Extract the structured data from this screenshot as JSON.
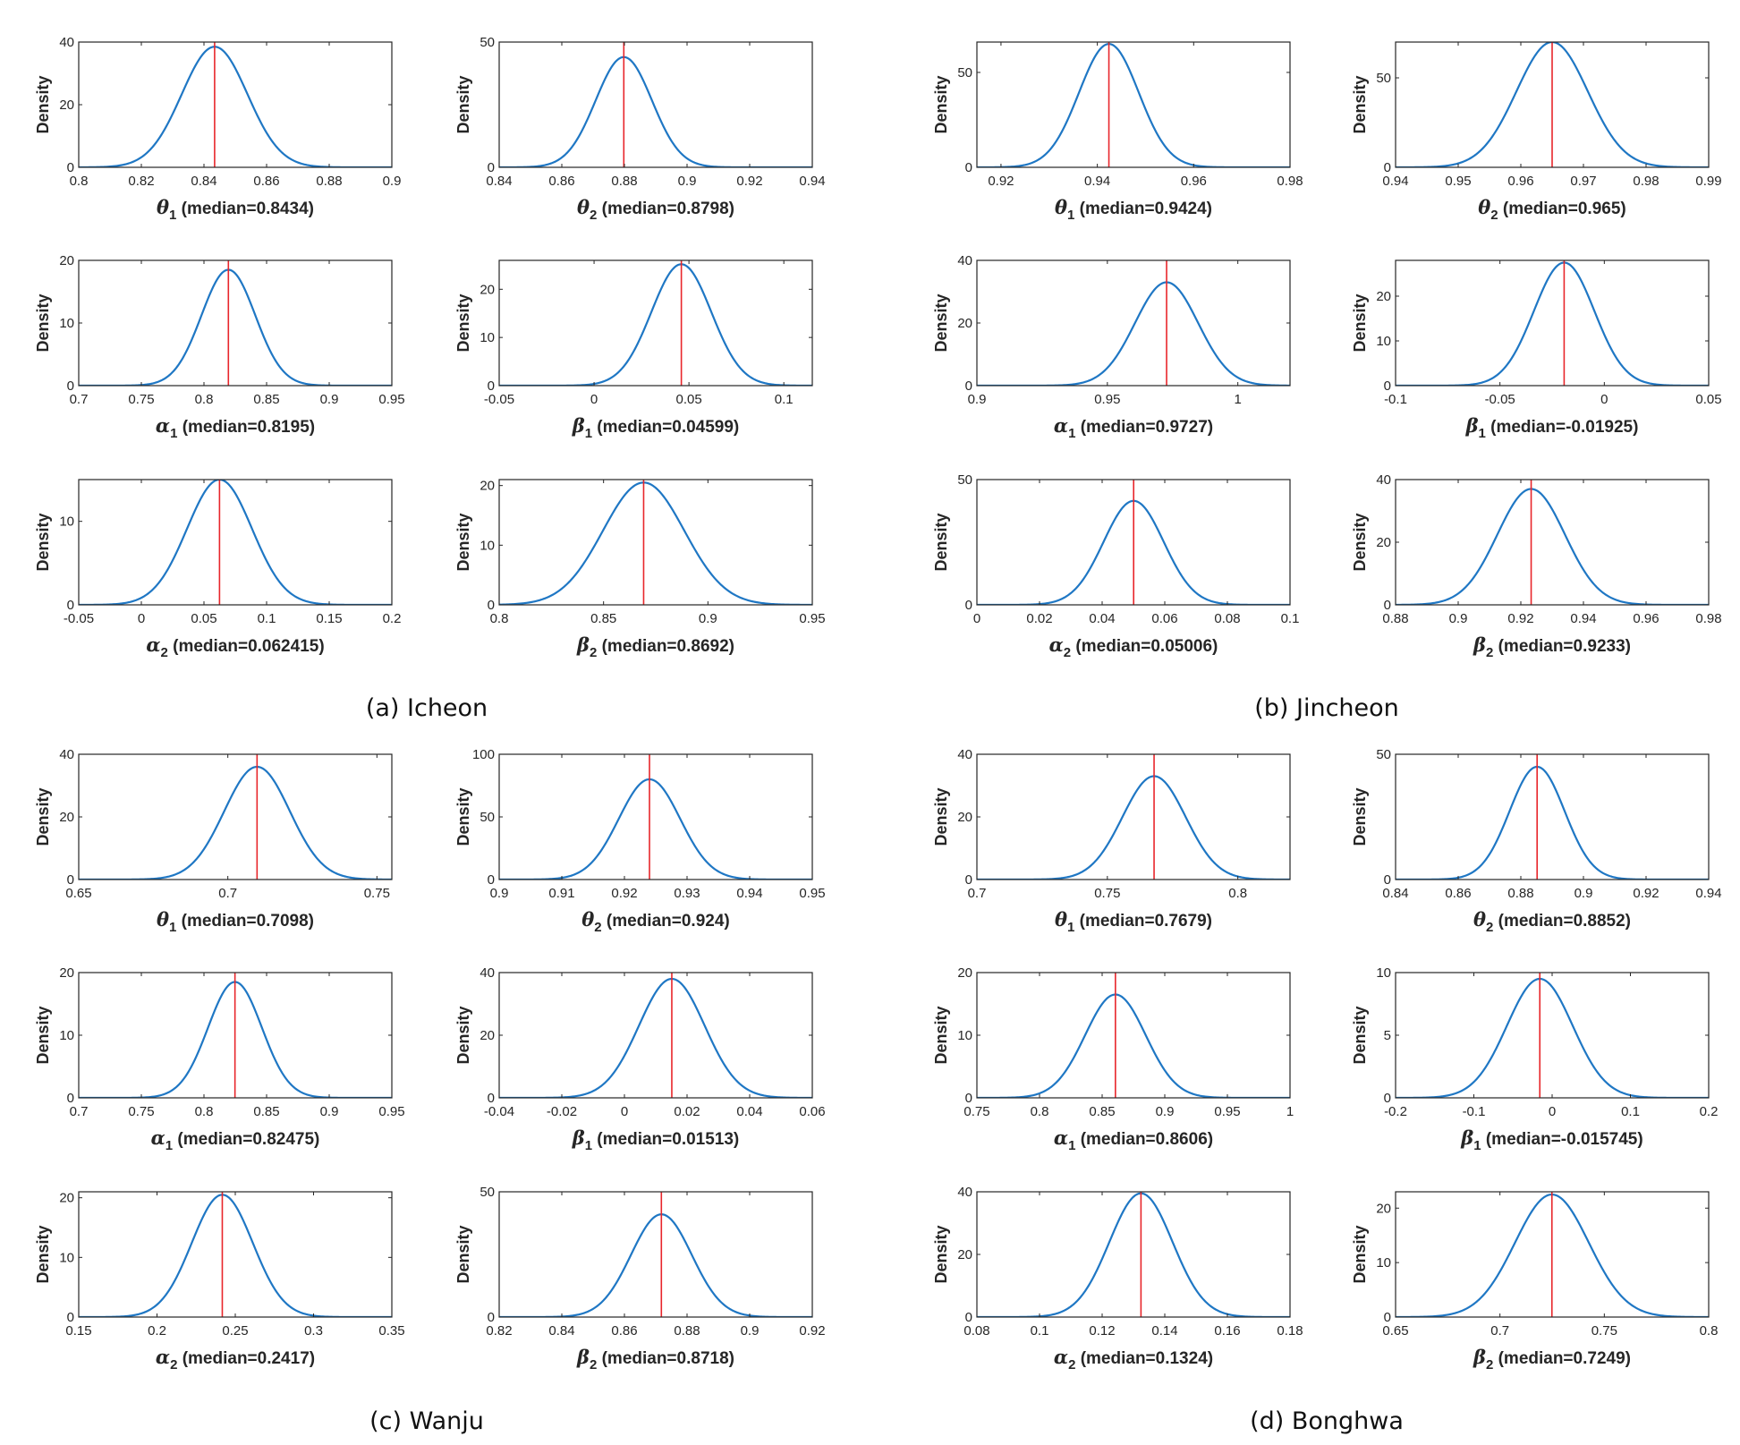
{
  "chart_data": [
    {
      "panel": "a",
      "type": "line",
      "ylabel": "Density",
      "symbol": "θ",
      "sub": "1",
      "label": " (median=0.8434)",
      "median": 0.8434,
      "xlim": [
        0.8,
        0.9
      ],
      "xticks": [
        "0.8",
        "0.82",
        "0.84",
        "0.86",
        "0.88",
        "0.9"
      ],
      "ylim": [
        0,
        40
      ],
      "yticks": [
        "0",
        "20",
        "40"
      ],
      "peak": 38.5,
      "sd": 0.0105
    },
    {
      "panel": "a",
      "type": "line",
      "ylabel": "Density",
      "symbol": "θ",
      "sub": "2",
      "label": " (median=0.8798)",
      "median": 0.8798,
      "xlim": [
        0.84,
        0.94
      ],
      "xticks": [
        "0.84",
        "0.86",
        "0.88",
        "0.9",
        "0.92",
        "0.94"
      ],
      "ylim": [
        0,
        50
      ],
      "yticks": [
        "0",
        "50"
      ],
      "peak": 44,
      "sd": 0.009
    },
    {
      "panel": "a",
      "type": "line",
      "ylabel": "Density",
      "symbol": "α",
      "sub": "1",
      "label": " (median=0.8195)",
      "median": 0.8195,
      "xlim": [
        0.7,
        0.95
      ],
      "xticks": [
        "0.7",
        "0.75",
        "0.8",
        "0.85",
        "0.9",
        "0.95"
      ],
      "ylim": [
        0,
        20
      ],
      "yticks": [
        "0",
        "10",
        "20"
      ],
      "peak": 18.5,
      "sd": 0.0215
    },
    {
      "panel": "a",
      "type": "line",
      "ylabel": "Density",
      "symbol": "β",
      "sub": "1",
      "label": " (median=0.04599)",
      "median": 0.04599,
      "xlim": [
        -0.05,
        0.115
      ],
      "xticks": [
        "-0.05",
        "0",
        "0.05",
        "0.1"
      ],
      "xtickvals": [
        -0.05,
        0,
        0.05,
        0.1
      ],
      "ylim": [
        0,
        26
      ],
      "yticks": [
        "0",
        "10",
        "20"
      ],
      "ytickvals": [
        0,
        10,
        20
      ],
      "peak": 25.2,
      "sd": 0.0158
    },
    {
      "panel": "a",
      "type": "line",
      "ylabel": "Density",
      "symbol": "α",
      "sub": "2",
      "label": " (median=0.062415)",
      "median": 0.062415,
      "xlim": [
        -0.05,
        0.2
      ],
      "xticks": [
        "-0.05",
        "0",
        "0.05",
        "0.1",
        "0.15",
        "0.2"
      ],
      "ylim": [
        0,
        15
      ],
      "yticks": [
        "0",
        "10"
      ],
      "ytickvals": [
        0,
        10
      ],
      "peak": 15,
      "sd": 0.026
    },
    {
      "panel": "a",
      "type": "line",
      "ylabel": "Density",
      "symbol": "β",
      "sub": "2",
      "label": " (median=0.8692)",
      "median": 0.8692,
      "xlim": [
        0.8,
        0.95
      ],
      "xticks": [
        "0.8",
        "0.85",
        "0.9",
        "0.95"
      ],
      "ylim": [
        0,
        21
      ],
      "yticks": [
        "0",
        "10",
        "20"
      ],
      "ytickvals": [
        0,
        10,
        20
      ],
      "peak": 20.5,
      "sd": 0.0195
    },
    {
      "panel": "b",
      "type": "line",
      "ylabel": "Density",
      "symbol": "θ",
      "sub": "1",
      "label": " (median=0.9424)",
      "median": 0.9424,
      "xlim": [
        0.915,
        0.98
      ],
      "xticks": [
        "0.92",
        "0.94",
        "0.96",
        "0.98"
      ],
      "xtickvals": [
        0.92,
        0.94,
        0.96,
        0.98
      ],
      "ylim": [
        0,
        66
      ],
      "yticks": [
        "0",
        "50"
      ],
      "ytickvals": [
        0,
        50
      ],
      "peak": 65,
      "sd": 0.0062
    },
    {
      "panel": "b",
      "type": "line",
      "ylabel": "Density",
      "symbol": "θ",
      "sub": "2",
      "label": " (median=0.965)",
      "median": 0.965,
      "xlim": [
        0.94,
        0.99
      ],
      "xticks": [
        "0.94",
        "0.95",
        "0.96",
        "0.97",
        "0.98",
        "0.99"
      ],
      "ylim": [
        0,
        70
      ],
      "yticks": [
        "0",
        "50"
      ],
      "ytickvals": [
        0,
        50
      ],
      "peak": 70,
      "sd": 0.0057
    },
    {
      "panel": "b",
      "type": "line",
      "ylabel": "Density",
      "symbol": "α",
      "sub": "1",
      "label": " (median=0.9727)",
      "median": 0.9727,
      "xlim": [
        0.9,
        1.02
      ],
      "xticks": [
        "0.9",
        "0.95",
        "1"
      ],
      "xtickvals": [
        0.9,
        0.95,
        1
      ],
      "ylim": [
        0,
        40
      ],
      "yticks": [
        "0",
        "20",
        "40"
      ],
      "peak": 33,
      "sd": 0.0121
    },
    {
      "panel": "b",
      "type": "line",
      "ylabel": "Density",
      "symbol": "β",
      "sub": "1",
      "label": " (median=-0.01925)",
      "median": -0.01925,
      "xlim": [
        -0.1,
        0.05
      ],
      "xticks": [
        "-0.1",
        "-0.05",
        "0",
        "0.05"
      ],
      "ylim": [
        0,
        28
      ],
      "yticks": [
        "0",
        "10",
        "20"
      ],
      "ytickvals": [
        0,
        10,
        20
      ],
      "peak": 27.5,
      "sd": 0.0145
    },
    {
      "panel": "b",
      "type": "line",
      "ylabel": "Density",
      "symbol": "α",
      "sub": "2",
      "label": " (median=0.05006)",
      "median": 0.05006,
      "xlim": [
        0,
        0.1
      ],
      "xticks": [
        "0",
        "0.02",
        "0.04",
        "0.06",
        "0.08",
        "0.1"
      ],
      "ylim": [
        0,
        50
      ],
      "yticks": [
        "0",
        "50"
      ],
      "peak": 41.5,
      "sd": 0.0096
    },
    {
      "panel": "b",
      "type": "line",
      "ylabel": "Density",
      "symbol": "β",
      "sub": "2",
      "label": " (median=0.9233)",
      "median": 0.9233,
      "xlim": [
        0.88,
        0.98
      ],
      "xticks": [
        "0.88",
        "0.9",
        "0.92",
        "0.94",
        "0.96",
        "0.98"
      ],
      "ylim": [
        0,
        40
      ],
      "yticks": [
        "0",
        "20",
        "40"
      ],
      "peak": 37,
      "sd": 0.0108
    },
    {
      "panel": "c",
      "type": "line",
      "ylabel": "Density",
      "symbol": "θ",
      "sub": "1",
      "label": " (median=0.7098)",
      "median": 0.7098,
      "xlim": [
        0.65,
        0.755
      ],
      "xticks": [
        "0.65",
        "0.7",
        "0.75"
      ],
      "xtickvals": [
        0.65,
        0.7,
        0.75
      ],
      "ylim": [
        0,
        40
      ],
      "yticks": [
        "0",
        "20",
        "40"
      ],
      "peak": 36,
      "sd": 0.011
    },
    {
      "panel": "c",
      "type": "line",
      "ylabel": "Density",
      "symbol": "θ",
      "sub": "2",
      "label": " (median=0.924)",
      "median": 0.924,
      "xlim": [
        0.9,
        0.95
      ],
      "xticks": [
        "0.9",
        "0.91",
        "0.92",
        "0.93",
        "0.94",
        "0.95"
      ],
      "ylim": [
        0,
        100
      ],
      "yticks": [
        "0",
        "50",
        "100"
      ],
      "peak": 80,
      "sd": 0.0049
    },
    {
      "panel": "c",
      "type": "line",
      "ylabel": "Density",
      "symbol": "α",
      "sub": "1",
      "label": " (median=0.82475)",
      "median": 0.82475,
      "xlim": [
        0.7,
        0.95
      ],
      "xticks": [
        "0.7",
        "0.75",
        "0.8",
        "0.85",
        "0.9",
        "0.95"
      ],
      "ylim": [
        0,
        20
      ],
      "yticks": [
        "0",
        "10",
        "20"
      ],
      "peak": 18.5,
      "sd": 0.0215
    },
    {
      "panel": "c",
      "type": "line",
      "ylabel": "Density",
      "symbol": "β",
      "sub": "1",
      "label": " (median=0.01513)",
      "median": 0.01513,
      "xlim": [
        -0.04,
        0.06
      ],
      "xticks": [
        "-0.04",
        "-0.02",
        "0",
        "0.02",
        "0.04",
        "0.06"
      ],
      "ylim": [
        0,
        40
      ],
      "yticks": [
        "0",
        "20",
        "40"
      ],
      "peak": 38,
      "sd": 0.0105
    },
    {
      "panel": "c",
      "type": "line",
      "ylabel": "Density",
      "symbol": "α",
      "sub": "2",
      "label": " (median=0.2417)",
      "median": 0.2417,
      "xlim": [
        0.15,
        0.35
      ],
      "xticks": [
        "0.15",
        "0.2",
        "0.25",
        "0.3",
        "0.35"
      ],
      "ylim": [
        0,
        21
      ],
      "yticks": [
        "0",
        "10",
        "20"
      ],
      "ytickvals": [
        0,
        10,
        20
      ],
      "peak": 20.5,
      "sd": 0.0195
    },
    {
      "panel": "c",
      "type": "line",
      "ylabel": "Density",
      "symbol": "β",
      "sub": "2",
      "label": " (median=0.8718)",
      "median": 0.8718,
      "xlim": [
        0.82,
        0.92
      ],
      "xticks": [
        "0.82",
        "0.84",
        "0.86",
        "0.88",
        "0.9",
        "0.92"
      ],
      "ylim": [
        0,
        50
      ],
      "yticks": [
        "0",
        "50"
      ],
      "peak": 41,
      "sd": 0.0097
    },
    {
      "panel": "d",
      "type": "line",
      "ylabel": "Density",
      "symbol": "θ",
      "sub": "1",
      "label": " (median=0.7679)",
      "median": 0.7679,
      "xlim": [
        0.7,
        0.82
      ],
      "xticks": [
        "0.7",
        "0.75",
        "0.8"
      ],
      "xtickvals": [
        0.7,
        0.75,
        0.8
      ],
      "ylim": [
        0,
        40
      ],
      "yticks": [
        "0",
        "20",
        "40"
      ],
      "peak": 33,
      "sd": 0.0121
    },
    {
      "panel": "d",
      "type": "line",
      "ylabel": "Density",
      "symbol": "θ",
      "sub": "2",
      "label": " (median=0.8852)",
      "median": 0.8852,
      "xlim": [
        0.84,
        0.94
      ],
      "xticks": [
        "0.84",
        "0.86",
        "0.88",
        "0.9",
        "0.92",
        "0.94"
      ],
      "ylim": [
        0,
        50
      ],
      "yticks": [
        "0",
        "50"
      ],
      "peak": 45,
      "sd": 0.0088
    },
    {
      "panel": "d",
      "type": "line",
      "ylabel": "Density",
      "symbol": "α",
      "sub": "1",
      "label": " (median=0.8606)",
      "median": 0.8606,
      "xlim": [
        0.75,
        1
      ],
      "xticks": [
        "0.75",
        "0.8",
        "0.85",
        "0.9",
        "0.95",
        "1"
      ],
      "ylim": [
        0,
        20
      ],
      "yticks": [
        "0",
        "10",
        "20"
      ],
      "peak": 16.5,
      "sd": 0.0242
    },
    {
      "panel": "d",
      "type": "line",
      "ylabel": "Density",
      "symbol": "β",
      "sub": "1",
      "label": " (median=-0.015745)",
      "median": -0.015745,
      "xlim": [
        -0.2,
        0.2
      ],
      "xticks": [
        "-0.2",
        "-0.1",
        "0",
        "0.1",
        "0.2"
      ],
      "ylim": [
        0,
        10
      ],
      "yticks": [
        "0",
        "5",
        "10"
      ],
      "peak": 9.5,
      "sd": 0.042
    },
    {
      "panel": "d",
      "type": "line",
      "ylabel": "Density",
      "symbol": "α",
      "sub": "2",
      "label": " (median=0.1324)",
      "median": 0.1324,
      "xlim": [
        0.08,
        0.18
      ],
      "xticks": [
        "0.08",
        "0.1",
        "0.12",
        "0.14",
        "0.16",
        "0.18"
      ],
      "ylim": [
        0,
        40
      ],
      "yticks": [
        "0",
        "20",
        "40"
      ],
      "peak": 39.5,
      "sd": 0.0101
    },
    {
      "panel": "d",
      "type": "line",
      "ylabel": "Density",
      "symbol": "β",
      "sub": "2",
      "label": " (median=0.7249)",
      "median": 0.7249,
      "xlim": [
        0.65,
        0.8
      ],
      "xticks": [
        "0.65",
        "0.7",
        "0.75",
        "0.8"
      ],
      "ylim": [
        0,
        23
      ],
      "yticks": [
        "0",
        "10",
        "20"
      ],
      "ytickvals": [
        0,
        10,
        20
      ],
      "peak": 22.5,
      "sd": 0.0177
    }
  ],
  "captions": {
    "a": "(a) Icheon",
    "b": "(b) Jincheon",
    "c": "(c) Wanju",
    "d": "(d) Bonghwa"
  },
  "colors": {
    "curve": "#1f77c4",
    "median_line": "#e8262b",
    "axes": "#262626"
  }
}
